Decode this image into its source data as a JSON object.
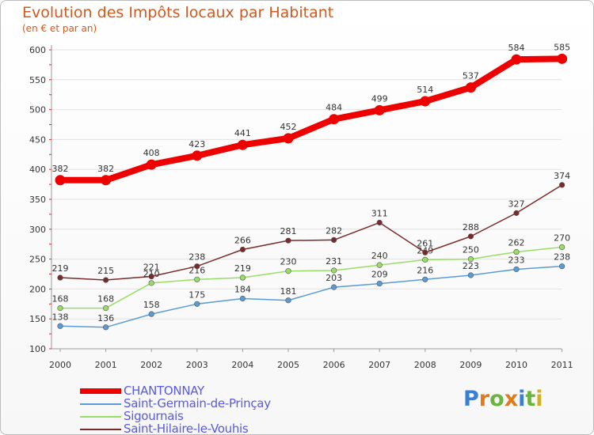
{
  "title": "Evolution des Impôts locaux par Habitant",
  "subtitle": "(en € et par an)",
  "chart_data": {
    "type": "line",
    "title": "Evolution des Impôts locaux par Habitant",
    "subtitle": "(en € et par an)",
    "xlabel": "",
    "ylabel": "",
    "ylim": [
      100,
      600
    ],
    "yticks": [
      100,
      150,
      200,
      250,
      300,
      350,
      400,
      450,
      500,
      550,
      600
    ],
    "categories": [
      "2000",
      "2001",
      "2002",
      "2003",
      "2004",
      "2005",
      "2006",
      "2007",
      "2008",
      "2009",
      "2010",
      "2011"
    ],
    "series": [
      {
        "name": "CHANTONNAY",
        "color": "#ee0000",
        "values": [
          382,
          382,
          408,
          423,
          441,
          452,
          484,
          499,
          514,
          537,
          584,
          585
        ]
      },
      {
        "name": "Saint-Germain-de-Prinçay",
        "color": "#5b9bd5",
        "values": [
          138,
          136,
          158,
          175,
          184,
          181,
          203,
          209,
          216,
          223,
          233,
          238
        ]
      },
      {
        "name": "Sigournais",
        "color": "#99dd66",
        "values": [
          168,
          168,
          210,
          216,
          219,
          230,
          231,
          240,
          249,
          250,
          262,
          270
        ]
      },
      {
        "name": "Saint-Hilaire-le-Vouhis",
        "color": "#7a2a2a",
        "values": [
          219,
          215,
          221,
          238,
          266,
          281,
          282,
          311,
          261,
          288,
          327,
          374
        ]
      }
    ],
    "legend_position": "bottom-left"
  },
  "logo": {
    "letters": [
      "P",
      "r",
      "o",
      "x",
      "i",
      "t",
      "i"
    ],
    "colors": [
      "#3b7fd4",
      "#e07a1f",
      "#6cb33f",
      "#e07a1f",
      "#3b7fd4",
      "#6cb33f",
      "#d4b01f"
    ]
  }
}
